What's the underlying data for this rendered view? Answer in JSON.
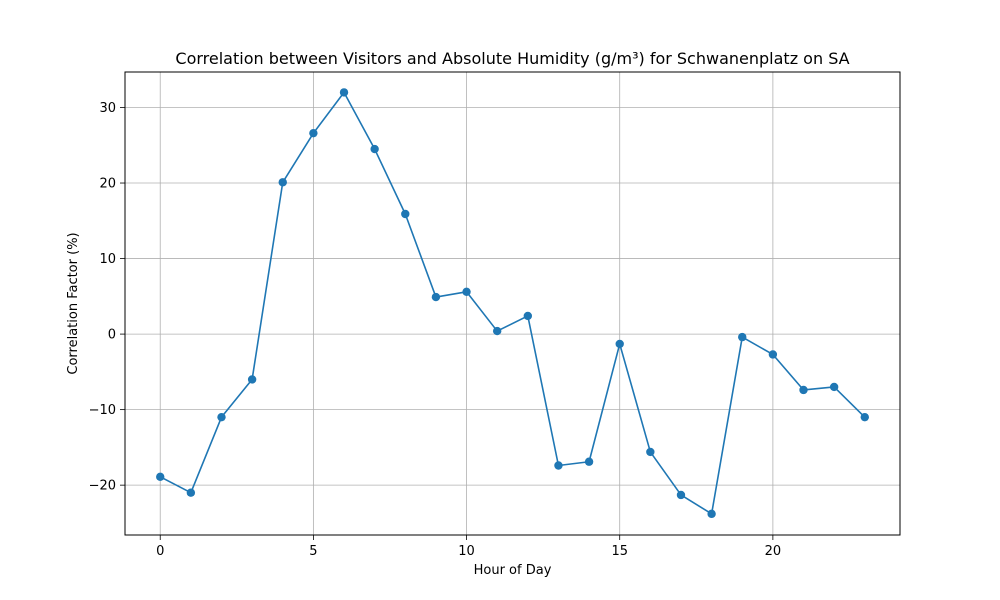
{
  "chart_data": {
    "type": "line",
    "title": "Correlation between Visitors and Absolute Humidity (g/m³) for Schwanenplatz on SA",
    "xlabel": "Hour of Day",
    "ylabel": "Correlation Factor (%)",
    "x": [
      0,
      1,
      2,
      3,
      4,
      5,
      6,
      7,
      8,
      9,
      10,
      11,
      12,
      13,
      14,
      15,
      16,
      17,
      18,
      19,
      20,
      21,
      22,
      23
    ],
    "series": [
      {
        "values": [
          -18.9,
          -21.0,
          -11.0,
          -6.0,
          20.1,
          26.6,
          32.0,
          24.5,
          15.9,
          4.9,
          5.6,
          0.4,
          2.4,
          -17.4,
          -16.9,
          -1.3,
          -15.6,
          -21.3,
          -23.8,
          -0.4,
          -2.7,
          -7.4,
          -7.0,
          -11.0
        ],
        "color": "#1f77b4"
      }
    ],
    "xlim": [
      -1.15,
      24.15
    ],
    "ylim": [
      -26.6,
      34.7
    ],
    "xticks": [
      0,
      5,
      10,
      15,
      20
    ],
    "yticks": [
      -20,
      -10,
      0,
      10,
      20,
      30
    ],
    "xtick_labels": [
      "0",
      "5",
      "10",
      "15",
      "20"
    ],
    "ytick_labels": [
      "−20",
      "−10",
      "0",
      "10",
      "20",
      "30"
    ],
    "grid": true,
    "marker": "circle"
  }
}
